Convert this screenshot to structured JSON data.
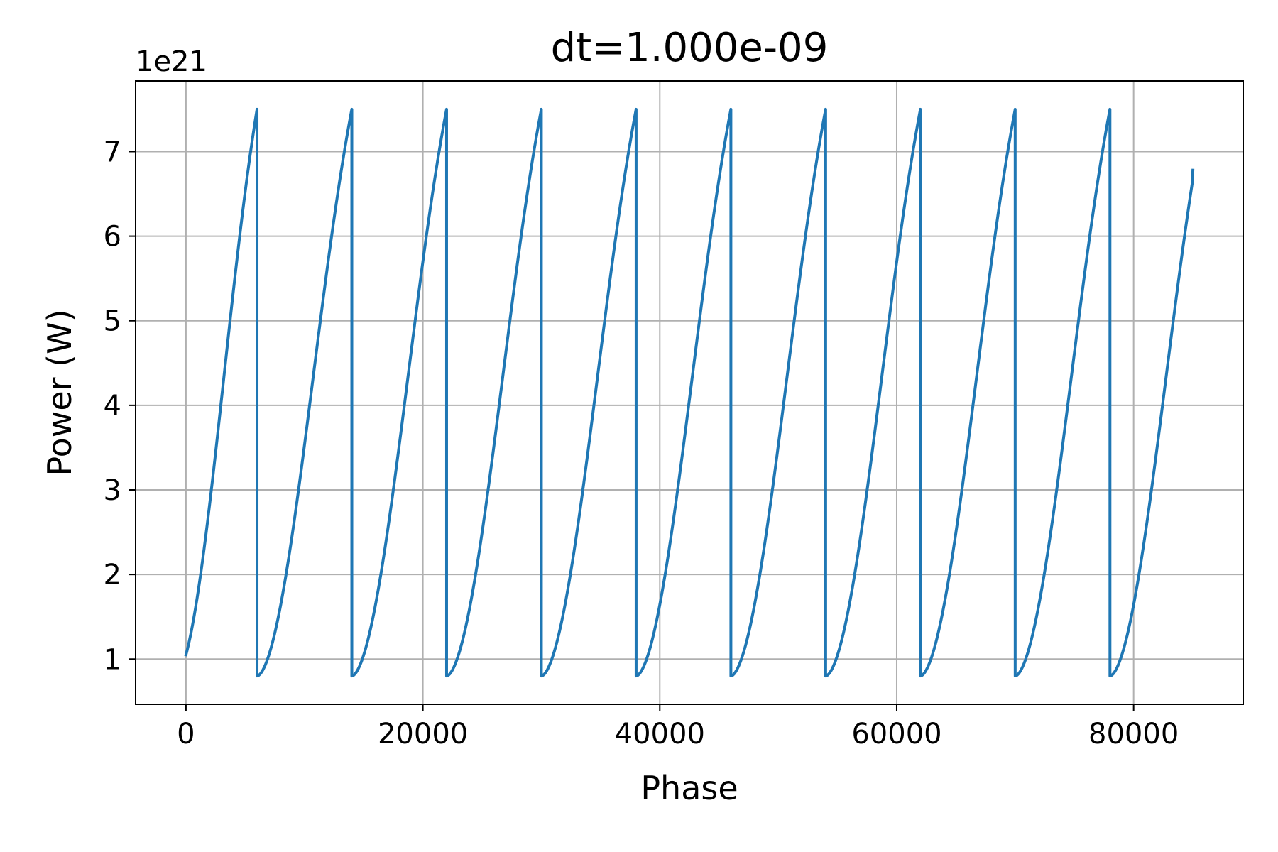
{
  "chart_data": {
    "type": "line",
    "title": "dt=1.000e-09",
    "xlabel": "Phase",
    "ylabel": "Power (W)",
    "y_offset_label": "1e21",
    "y_scale_multiplier": 1e+21,
    "xlim": [
      -4250,
      89250
    ],
    "ylim": [
      0.465,
      7.835
    ],
    "xticks": [
      0,
      20000,
      40000,
      60000,
      80000
    ],
    "xtick_labels": [
      "0",
      "20000",
      "40000",
      "60000",
      "80000"
    ],
    "yticks": [
      1,
      2,
      3,
      4,
      5,
      6,
      7
    ],
    "ytick_labels": [
      "1",
      "2",
      "3",
      "4",
      "5",
      "6",
      "7"
    ],
    "grid": true,
    "colors": {
      "line": "#1f77b4",
      "grid": "#b0b0b0",
      "axes": "#000000"
    },
    "series": [
      {
        "start_x": 0,
        "start_y": 1.05,
        "period": 8000,
        "drop_phase": 6000,
        "min_y": 0.8,
        "max_y": 7.5,
        "end_x": 85000,
        "end_y": 6.78
      }
    ]
  }
}
